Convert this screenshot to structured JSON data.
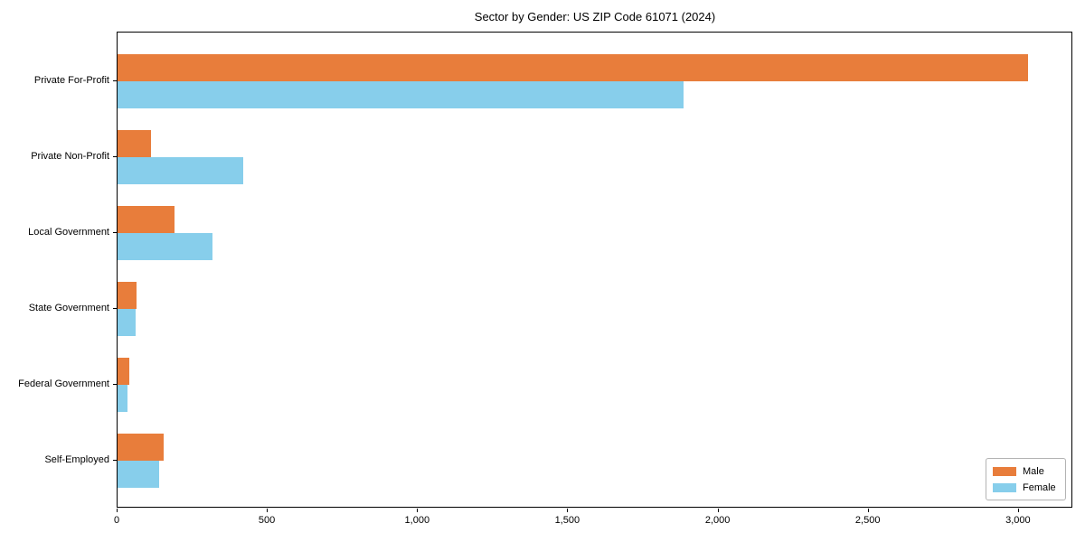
{
  "chart_data": {
    "type": "bar",
    "orientation": "horizontal",
    "title": "Sector by Gender: US ZIP Code 61071 (2024)",
    "categories": [
      "Private For-Profit",
      "Private Non-Profit",
      "Local Government",
      "State Government",
      "Federal Government",
      "Self-Employed"
    ],
    "series": [
      {
        "name": "Male",
        "color": "#e87d3b",
        "values": [
          3030,
          110,
          190,
          64,
          38,
          154
        ]
      },
      {
        "name": "Female",
        "color": "#87ceeb",
        "values": [
          1885,
          418,
          317,
          60,
          33,
          138
        ]
      }
    ],
    "xlabel": "",
    "ylabel": "",
    "xlim": [
      0,
      3181
    ],
    "xticks": [
      0,
      500,
      1000,
      1500,
      2000,
      2500,
      3000
    ],
    "xtick_labels": [
      "0",
      "500",
      "1,000",
      "1,500",
      "2,000",
      "2,500",
      "3,000"
    ],
    "grid": false,
    "legend": {
      "position": "lower right",
      "entries": [
        "Male",
        "Female"
      ]
    }
  },
  "colors": {
    "axis": "#000000",
    "legend_border": "#b3b3b3",
    "background": "#ffffff"
  }
}
